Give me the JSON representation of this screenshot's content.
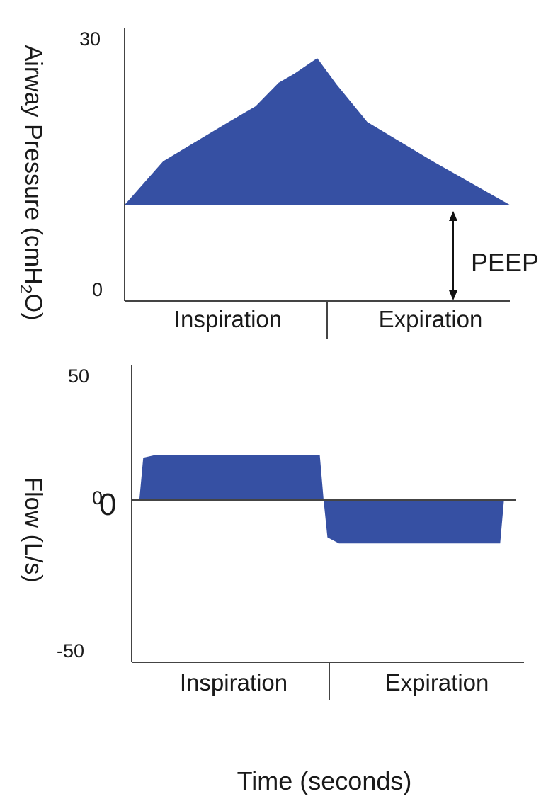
{
  "chart_data": [
    {
      "type": "area",
      "title": "",
      "ylabel": "Airway Pressure (cmH2O)",
      "ylabel_parts": {
        "main": "Airway Pressure (cmH",
        "sub": "2",
        "tail": "O)"
      },
      "xlabel": "",
      "ylim": [
        0,
        30
      ],
      "yticks": [
        "30",
        "0"
      ],
      "phases": [
        "Inspiration",
        "Expiration"
      ],
      "baseline": 11,
      "x": [
        0,
        0.1,
        0.27,
        0.34,
        0.4,
        0.44,
        0.5,
        0.55,
        0.63,
        0.8,
        1.0
      ],
      "y": [
        11,
        16,
        20.5,
        22.3,
        25,
        26,
        27.8,
        24.8,
        20.5,
        16,
        11
      ],
      "annotations": [
        {
          "text": "PEEP",
          "from": 0,
          "to": 11
        }
      ]
    },
    {
      "type": "area",
      "title": "",
      "ylabel": "Flow (L/s)",
      "xlabel": "Time (seconds)",
      "ylim": [
        -50,
        50
      ],
      "yticks": [
        "50",
        "0",
        "-50"
      ],
      "zero_marker": "0",
      "phases": [
        "Inspiration",
        "Expiration"
      ],
      "x": [
        0.02,
        0.03,
        0.06,
        0.49,
        0.5,
        0.51,
        0.54,
        0.96,
        0.97
      ],
      "y": [
        0,
        17,
        18,
        18,
        0,
        -12,
        -14,
        -14,
        0
      ]
    }
  ],
  "colors": {
    "fill": "#3650a3",
    "axis": "#444444",
    "text": "#1a1a1a"
  }
}
